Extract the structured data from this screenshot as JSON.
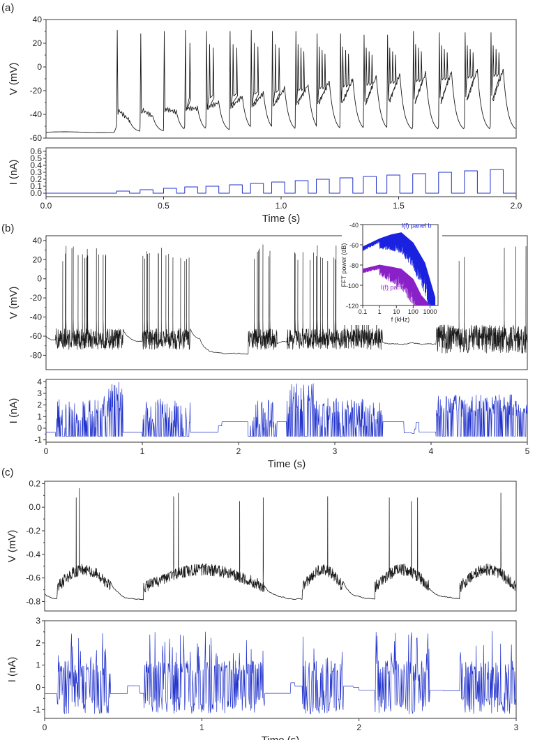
{
  "figure": {
    "panel_labels": [
      "(a)",
      "(b)",
      "(c)"
    ]
  },
  "chart_data": [
    {
      "type": "line",
      "panel": "(a)",
      "subplot": "voltage",
      "ylabel": "V  (mV)",
      "xlabel": "",
      "xlim": [
        0,
        2
      ],
      "ylim": [
        -60,
        40
      ],
      "yticks": [
        -60,
        -40,
        -20,
        0,
        20,
        40
      ],
      "ytick_labels": [
        "-60",
        "-40",
        "-20",
        "0",
        "20",
        "40"
      ],
      "color": "#1a1a1a",
      "series": [
        {
          "name": "V",
          "description": "resting near -55 mV until 0.3 s, then stepped current produces bursts of spikes reaching ~30 mV",
          "rest": -55,
          "onset": 0.3,
          "spike_peaks": [
            31,
            28,
            30,
            31,
            30,
            30,
            31,
            30,
            30,
            28,
            28,
            27,
            27,
            30,
            29,
            29
          ],
          "plateau_end": [
            -45,
            -42,
            -38,
            -35,
            -30,
            -25,
            -22,
            -18,
            -15,
            -12,
            -10,
            -8,
            -6,
            -5,
            -4,
            -2
          ]
        }
      ]
    },
    {
      "type": "line",
      "panel": "(a)",
      "subplot": "current",
      "ylabel": "I  (nA)",
      "xlabel": "Time (s)",
      "xlim": [
        0,
        2
      ],
      "ylim": [
        -0.05,
        0.65
      ],
      "xticks": [
        0,
        0.5,
        1,
        1.5,
        2
      ],
      "xtick_labels": [
        "0.0",
        "0.5",
        "1.0",
        "1.5",
        "2.0"
      ],
      "yticks": [
        0,
        0.1,
        0.2,
        0.3,
        0.4,
        0.5,
        0.6
      ],
      "ytick_labels": [
        "0.0",
        "0.1",
        "0.2",
        "0.3",
        "0.4",
        "0.5",
        "0.6"
      ],
      "color": "#2233cc",
      "series": [
        {
          "name": "I",
          "description": "square pulses of increasing amplitude starting at 0.3 s",
          "pulse_start": [
            0.3,
            0.4,
            0.5,
            0.59,
            0.68,
            0.78,
            0.87,
            0.96,
            1.06,
            1.15,
            1.25,
            1.35,
            1.45,
            1.56,
            1.67,
            1.78,
            1.89
          ],
          "pulse_amplitude": [
            0.03,
            0.05,
            0.07,
            0.09,
            0.1,
            0.12,
            0.14,
            0.16,
            0.18,
            0.2,
            0.22,
            0.24,
            0.26,
            0.28,
            0.3,
            0.32,
            0.34
          ],
          "pulse_width": 0.055
        }
      ]
    },
    {
      "type": "line",
      "panel": "(b)",
      "subplot": "voltage",
      "ylabel": "V  (mV)",
      "xlabel": "",
      "xlim": [
        0,
        5
      ],
      "ylim": [
        -95,
        45
      ],
      "yticks": [
        -80,
        -60,
        -40,
        -20,
        0,
        20,
        40
      ],
      "ytick_labels": [
        "-80",
        "-60",
        "-40",
        "-20",
        "0",
        "20",
        "40"
      ],
      "color": "#1a1a1a",
      "series": [
        {
          "name": "V",
          "description": "irregular bursting driven by noisy current; silent periods around 1.6-2.0 s and 3.6-4.0 s; dense noisy activity after 4.05 s",
          "active_windows": [
            [
              0.1,
              0.8
            ],
            [
              1.0,
              1.5
            ],
            [
              2.1,
              2.4
            ],
            [
              2.5,
              3.5
            ],
            [
              4.05,
              5.0
            ]
          ]
        }
      ]
    },
    {
      "type": "line",
      "panel": "(b)",
      "subplot": "current",
      "ylabel": "I  (nA)",
      "xlabel": "Time (s)",
      "xlim": [
        0,
        5
      ],
      "ylim": [
        -1.2,
        4.2
      ],
      "xticks": [
        0,
        1,
        2,
        3,
        4,
        5
      ],
      "xtick_labels": [
        "0",
        "1",
        "2",
        "3",
        "4",
        "5"
      ],
      "yticks": [
        -1,
        0,
        1,
        2,
        3,
        4
      ],
      "ytick_labels": [
        "-1",
        "0",
        "1",
        "2",
        "3",
        "4"
      ],
      "color": "#2233cc",
      "series": [
        {
          "name": "I",
          "description": "noisy injected current with bursts up to ~4 nA"
        }
      ]
    },
    {
      "type": "line",
      "panel": "(b) inset",
      "subplot": "FFT",
      "ylabel": "FFT power (dB)",
      "xlabel": "f  (kHz)",
      "xscale": "log",
      "xlim": [
        0.1,
        3000
      ],
      "ylim": [
        -120,
        -40
      ],
      "xticks": [
        0.1,
        1,
        10,
        100,
        1000
      ],
      "xtick_labels": [
        "0.1",
        "1",
        "10",
        "100",
        "1000"
      ],
      "yticks": [
        -120,
        -100,
        -80,
        -60,
        -40
      ],
      "ytick_labels": [
        "-120",
        "-100",
        "-80",
        "-60",
        "-40"
      ],
      "series": [
        {
          "name": "I(f) panel b",
          "color": "#1a22e0",
          "f_khz": [
            0.1,
            1,
            5,
            20,
            100,
            500,
            2000
          ],
          "power_db": [
            -62,
            -54,
            -50,
            -48,
            -58,
            -78,
            -112
          ]
        },
        {
          "name": "I(f) panel c",
          "color": "#8a20c8",
          "f_khz": [
            0.1,
            1,
            5,
            20,
            100,
            300,
            1000
          ],
          "power_db": [
            -84,
            -80,
            -82,
            -84,
            -94,
            -110,
            -120
          ]
        }
      ]
    },
    {
      "type": "line",
      "panel": "(c)",
      "subplot": "voltage",
      "ylabel": "V  (mV)",
      "xlabel": "",
      "xlim": [
        0,
        3
      ],
      "ylim": [
        -0.88,
        0.22
      ],
      "yticks": [
        -0.8,
        -0.6,
        -0.4,
        -0.2,
        0.0,
        0.2
      ],
      "ytick_labels": [
        "-0.8",
        "-0.6",
        "-0.4",
        "-0.2",
        "0.0",
        "0.2"
      ],
      "color": "#1a1a1a",
      "series": [
        {
          "name": "V",
          "description": "noisy depolarisations with occasional spikes; quiet decays between active windows",
          "active_windows": [
            [
              0.08,
              0.42
            ],
            [
              0.63,
              1.4
            ],
            [
              1.64,
              1.9
            ],
            [
              2.1,
              2.45
            ],
            [
              2.64,
              3.0
            ]
          ],
          "spike_times": [
            0.2,
            0.22,
            0.82,
            0.85,
            1.24,
            1.39,
            1.8,
            2.19,
            2.33,
            2.37,
            2.9
          ],
          "spike_peaks": [
            0.08,
            0.16,
            0.09,
            0.12,
            0.05,
            0.08,
            0.09,
            0.08,
            0.05,
            0.08,
            0.12
          ]
        }
      ]
    },
    {
      "type": "line",
      "panel": "(c)",
      "subplot": "current",
      "ylabel": "I  (nA)",
      "xlabel": "Time (s)",
      "xlim": [
        0,
        3
      ],
      "ylim": [
        -1.4,
        3.0
      ],
      "xticks": [
        0,
        1,
        2,
        3
      ],
      "xtick_labels": [
        "0",
        "1",
        "2",
        "3"
      ],
      "yticks": [
        -1,
        0,
        1,
        2,
        3
      ],
      "ytick_labels": [
        "-1",
        "0",
        "1",
        "2",
        "3"
      ],
      "color": "#2233cc",
      "series": [
        {
          "name": "I",
          "description": "noisy current bursts between -1.2 and 2.8 nA in the active windows"
        }
      ]
    }
  ]
}
